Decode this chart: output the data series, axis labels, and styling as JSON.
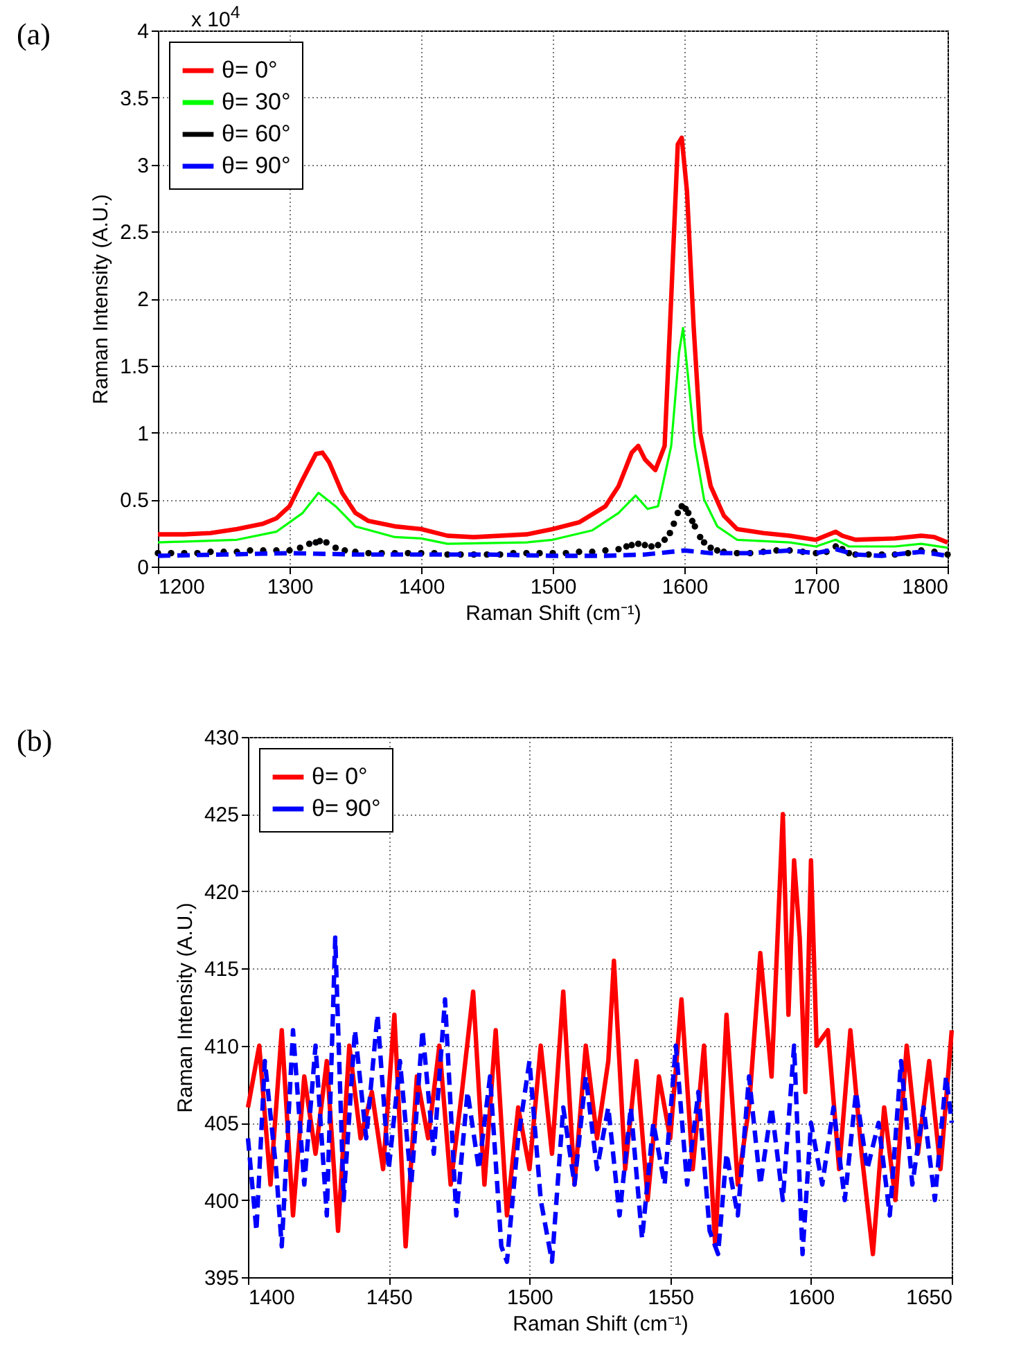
{
  "chart_data": [
    {
      "type": "line",
      "xlabel": "Raman Shift (cm⁻¹)",
      "ylabel": "Raman Intensity (A.U.)",
      "annotations": [
        "(a)",
        "x 10$^{4}$"
      ],
      "xlim": [
        1200,
        1800
      ],
      "xticks": [
        1200,
        1300,
        1400,
        1500,
        1600,
        1700,
        1800
      ],
      "ylim": [
        0,
        4
      ],
      "yticks": [
        0,
        0.5,
        1,
        1.5,
        2,
        2.5,
        3,
        3.5,
        4
      ],
      "grid": true,
      "legend": "top left",
      "series": [
        {
          "name": "θ= 0°",
          "color": "#ff0000",
          "line_style": "solid",
          "x": [
            1200,
            1220,
            1240,
            1260,
            1280,
            1290,
            1300,
            1310,
            1320,
            1325,
            1330,
            1340,
            1350,
            1360,
            1380,
            1400,
            1420,
            1440,
            1460,
            1480,
            1500,
            1520,
            1540,
            1550,
            1560,
            1565,
            1570,
            1578,
            1585,
            1590,
            1595,
            1598,
            1602,
            1607,
            1612,
            1620,
            1630,
            1640,
            1660,
            1680,
            1700,
            1710,
            1715,
            1720,
            1730,
            1760,
            1780,
            1790,
            1800
          ],
          "values": [
            0.24,
            0.24,
            0.25,
            0.28,
            0.32,
            0.36,
            0.45,
            0.65,
            0.84,
            0.85,
            0.78,
            0.55,
            0.4,
            0.34,
            0.3,
            0.28,
            0.23,
            0.22,
            0.23,
            0.24,
            0.28,
            0.33,
            0.45,
            0.6,
            0.85,
            0.9,
            0.8,
            0.72,
            0.9,
            2.0,
            3.15,
            3.2,
            2.8,
            1.8,
            1.0,
            0.6,
            0.38,
            0.28,
            0.25,
            0.23,
            0.2,
            0.24,
            0.26,
            0.23,
            0.2,
            0.21,
            0.23,
            0.22,
            0.18
          ]
        },
        {
          "name": "θ= 30°",
          "color": "#00ff00",
          "line_style": "solid",
          "x": [
            1200,
            1260,
            1290,
            1310,
            1322,
            1335,
            1350,
            1380,
            1400,
            1420,
            1480,
            1500,
            1530,
            1550,
            1563,
            1572,
            1580,
            1590,
            1596,
            1599,
            1603,
            1608,
            1615,
            1625,
            1640,
            1680,
            1700,
            1715,
            1725,
            1760,
            1780,
            1800
          ],
          "values": [
            0.18,
            0.2,
            0.26,
            0.4,
            0.55,
            0.45,
            0.3,
            0.22,
            0.21,
            0.17,
            0.18,
            0.2,
            0.27,
            0.4,
            0.53,
            0.43,
            0.45,
            0.9,
            1.6,
            1.78,
            1.4,
            0.9,
            0.5,
            0.3,
            0.2,
            0.18,
            0.15,
            0.2,
            0.15,
            0.15,
            0.17,
            0.14
          ]
        },
        {
          "name": "θ= 60°",
          "color": "#000000",
          "type": "scatter",
          "marker": "circle",
          "x": [
            1200,
            1210,
            1220,
            1230,
            1240,
            1250,
            1260,
            1270,
            1280,
            1290,
            1300,
            1308,
            1315,
            1320,
            1323,
            1328,
            1335,
            1342,
            1350,
            1360,
            1370,
            1380,
            1390,
            1400,
            1410,
            1420,
            1430,
            1440,
            1450,
            1460,
            1470,
            1480,
            1490,
            1500,
            1510,
            1520,
            1530,
            1540,
            1550,
            1556,
            1560,
            1565,
            1570,
            1575,
            1580,
            1585,
            1589,
            1592,
            1595,
            1598,
            1601,
            1603,
            1606,
            1608,
            1612,
            1615,
            1620,
            1625,
            1630,
            1640,
            1650,
            1660,
            1670,
            1680,
            1690,
            1700,
            1708,
            1715,
            1720,
            1725,
            1730,
            1740,
            1750,
            1760,
            1770,
            1780,
            1790,
            1800
          ],
          "values": [
            0.1,
            0.1,
            0.1,
            0.1,
            0.11,
            0.11,
            0.11,
            0.12,
            0.12,
            0.12,
            0.12,
            0.14,
            0.17,
            0.18,
            0.19,
            0.18,
            0.14,
            0.12,
            0.11,
            0.1,
            0.1,
            0.1,
            0.1,
            0.1,
            0.1,
            0.09,
            0.09,
            0.09,
            0.09,
            0.09,
            0.1,
            0.1,
            0.1,
            0.1,
            0.1,
            0.11,
            0.11,
            0.12,
            0.13,
            0.15,
            0.16,
            0.17,
            0.16,
            0.15,
            0.16,
            0.2,
            0.25,
            0.32,
            0.4,
            0.45,
            0.43,
            0.4,
            0.34,
            0.3,
            0.22,
            0.18,
            0.14,
            0.12,
            0.11,
            0.1,
            0.1,
            0.11,
            0.12,
            0.12,
            0.11,
            0.1,
            0.11,
            0.15,
            0.13,
            0.1,
            0.09,
            0.09,
            0.09,
            0.09,
            0.1,
            0.12,
            0.11,
            0.09
          ]
        },
        {
          "name": "θ= 90°",
          "color": "#0000ff",
          "line_style": "dashed",
          "x": [
            1200,
            1250,
            1300,
            1350,
            1400,
            1450,
            1500,
            1540,
            1570,
            1600,
            1620,
            1650,
            1680,
            1700,
            1715,
            1730,
            1750,
            1780,
            1800
          ],
          "values": [
            0.08,
            0.09,
            0.1,
            0.09,
            0.09,
            0.09,
            0.08,
            0.08,
            0.09,
            0.12,
            0.1,
            0.1,
            0.12,
            0.1,
            0.13,
            0.09,
            0.08,
            0.11,
            0.08
          ]
        }
      ]
    },
    {
      "type": "line",
      "xlabel": "Raman Shift (cm⁻¹)",
      "ylabel": "Raman Intensity (A.U.)",
      "annotations": [
        "(b)"
      ],
      "xlim": [
        1400,
        1650
      ],
      "xticks": [
        1400,
        1450,
        1500,
        1550,
        1600,
        1650
      ],
      "ylim": [
        395,
        430
      ],
      "yticks": [
        395,
        400,
        405,
        410,
        415,
        420,
        425,
        430
      ],
      "grid": true,
      "legend": "top left",
      "series": [
        {
          "name": "θ= 0°",
          "color": "#ff0000",
          "line_style": "solid",
          "x": [
            1400,
            1404,
            1408,
            1412,
            1416,
            1420,
            1424,
            1428,
            1432,
            1436,
            1440,
            1444,
            1448,
            1452,
            1456,
            1460,
            1464,
            1468,
            1472,
            1476,
            1480,
            1484,
            1488,
            1492,
            1496,
            1500,
            1504,
            1508,
            1512,
            1516,
            1520,
            1524,
            1528,
            1530,
            1534,
            1538,
            1542,
            1546,
            1550,
            1554,
            1558,
            1562,
            1566,
            1570,
            1574,
            1578,
            1582,
            1586,
            1590,
            1592,
            1594,
            1596,
            1598,
            1600,
            1602,
            1606,
            1610,
            1614,
            1618,
            1622,
            1626,
            1630,
            1634,
            1638,
            1642,
            1646,
            1650
          ],
          "values": [
            406,
            410,
            401,
            411,
            399,
            408,
            403,
            409,
            398,
            410,
            404,
            407,
            402,
            412,
            397,
            408,
            404,
            410,
            401,
            407,
            413.5,
            401,
            411,
            399,
            406,
            402,
            410,
            403,
            413.5,
            401,
            410,
            404,
            409,
            415.5,
            402,
            409,
            400,
            408,
            404,
            413,
            402,
            410,
            397,
            412,
            401,
            406,
            416,
            408,
            425,
            412,
            422,
            417,
            407,
            422,
            410,
            411,
            402,
            411,
            403,
            396.5,
            406,
            400,
            410,
            403,
            409,
            402,
            411
          ]
        },
        {
          "name": "θ= 90°",
          "color": "#0000ff",
          "line_style": "dashed",
          "x": [
            1400,
            1403,
            1406,
            1410,
            1412,
            1416,
            1420,
            1424,
            1428,
            1431,
            1434,
            1438,
            1442,
            1446,
            1450,
            1454,
            1458,
            1462,
            1466,
            1470,
            1474,
            1478,
            1482,
            1486,
            1490,
            1492,
            1496,
            1500,
            1504,
            1508,
            1512,
            1516,
            1520,
            1524,
            1528,
            1532,
            1536,
            1540,
            1544,
            1548,
            1552,
            1556,
            1560,
            1564,
            1567,
            1570,
            1574,
            1578,
            1582,
            1586,
            1590,
            1594,
            1597,
            1600,
            1604,
            1608,
            1612,
            1616,
            1620,
            1624,
            1628,
            1632,
            1636,
            1640,
            1644,
            1648,
            1650
          ],
          "values": [
            404,
            398,
            409,
            402,
            397,
            411,
            401,
            410,
            399,
            417,
            400,
            411,
            404,
            412,
            402,
            409,
            401,
            411,
            403,
            413,
            399,
            407,
            402,
            408,
            397,
            396,
            404,
            409,
            400,
            396,
            406,
            401,
            408,
            402,
            406,
            399,
            406,
            397.5,
            405,
            401,
            410,
            401,
            407,
            398,
            396.5,
            403,
            399,
            408,
            401,
            406,
            400,
            410,
            396.5,
            405,
            401,
            406,
            400,
            407,
            402,
            405,
            399,
            409,
            401,
            406,
            400,
            408,
            405
          ]
        }
      ]
    }
  ]
}
